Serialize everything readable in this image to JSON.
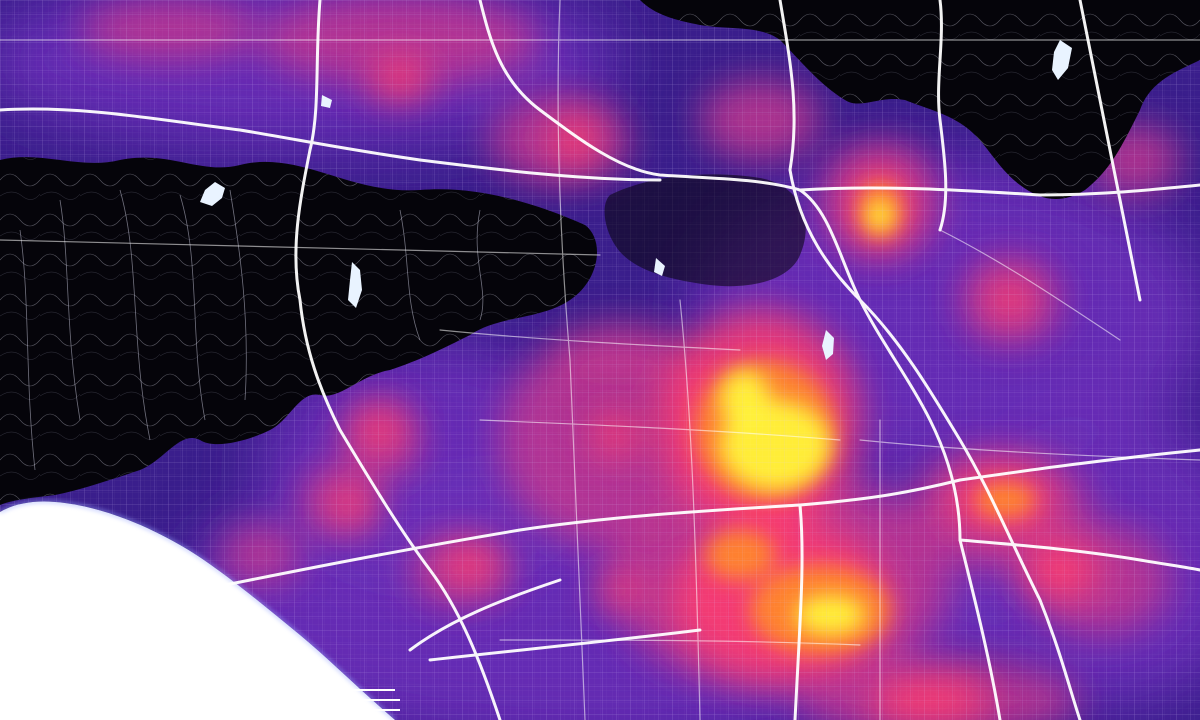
{
  "map": {
    "kind": "street-network heat map",
    "labels_visible": false,
    "colors": {
      "background": "#06050f",
      "hillside_dark": "#05040a",
      "heat_low": "#3a1e8c",
      "heat_mid_low": "#6a2fb8",
      "heat_mid": "#c0358f",
      "heat_high": "#ff3d6e",
      "heat_higher": "#ff8a2a",
      "heat_peak": "#fff23a",
      "street_grid": "#b9a4ff",
      "freeway": "#ffffff",
      "ocean": "#ffffff",
      "reservoir": "#e9f3ff"
    },
    "layers": [
      "ocean",
      "hillside",
      "heat",
      "street-grid",
      "freeways",
      "reservoirs"
    ]
  }
}
